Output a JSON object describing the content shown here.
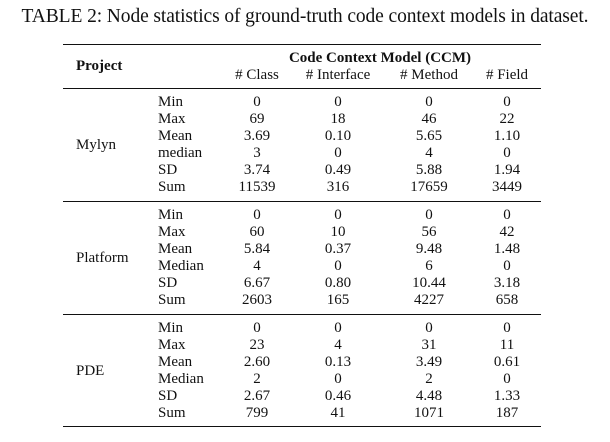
{
  "caption": "TABLE 2: Node statistics of ground-truth code context models in dataset.",
  "header": {
    "project": "Project",
    "group": "Code Context Model (CCM)",
    "columns": [
      "# Class",
      "# Interface",
      "# Method",
      "# Field"
    ]
  },
  "groups": [
    {
      "project": "Mylyn",
      "rows": [
        {
          "stat": "Min",
          "values": [
            "0",
            "0",
            "0",
            "0"
          ]
        },
        {
          "stat": "Max",
          "values": [
            "69",
            "18",
            "46",
            "22"
          ]
        },
        {
          "stat": "Mean",
          "values": [
            "3.69",
            "0.10",
            "5.65",
            "1.10"
          ]
        },
        {
          "stat": "median",
          "values": [
            "3",
            "0",
            "4",
            "0"
          ]
        },
        {
          "stat": "SD",
          "values": [
            "3.74",
            "0.49",
            "5.88",
            "1.94"
          ]
        },
        {
          "stat": "Sum",
          "values": [
            "11539",
            "316",
            "17659",
            "3449"
          ]
        }
      ]
    },
    {
      "project": "Platform",
      "rows": [
        {
          "stat": "Min",
          "values": [
            "0",
            "0",
            "0",
            "0"
          ]
        },
        {
          "stat": "Max",
          "values": [
            "60",
            "10",
            "56",
            "42"
          ]
        },
        {
          "stat": "Mean",
          "values": [
            "5.84",
            "0.37",
            "9.48",
            "1.48"
          ]
        },
        {
          "stat": "Median",
          "values": [
            "4",
            "0",
            "6",
            "0"
          ]
        },
        {
          "stat": "SD",
          "values": [
            "6.67",
            "0.80",
            "10.44",
            "3.18"
          ]
        },
        {
          "stat": "Sum",
          "values": [
            "2603",
            "165",
            "4227",
            "658"
          ]
        }
      ]
    },
    {
      "project": "PDE",
      "rows": [
        {
          "stat": "Min",
          "values": [
            "0",
            "0",
            "0",
            "0"
          ]
        },
        {
          "stat": "Max",
          "values": [
            "23",
            "4",
            "31",
            "11"
          ]
        },
        {
          "stat": "Mean",
          "values": [
            "2.60",
            "0.13",
            "3.49",
            "0.61"
          ]
        },
        {
          "stat": "Median",
          "values": [
            "2",
            "0",
            "2",
            "0"
          ]
        },
        {
          "stat": "SD",
          "values": [
            "2.67",
            "0.46",
            "4.48",
            "1.33"
          ]
        },
        {
          "stat": "Sum",
          "values": [
            "799",
            "41",
            "1071",
            "187"
          ]
        }
      ]
    }
  ]
}
